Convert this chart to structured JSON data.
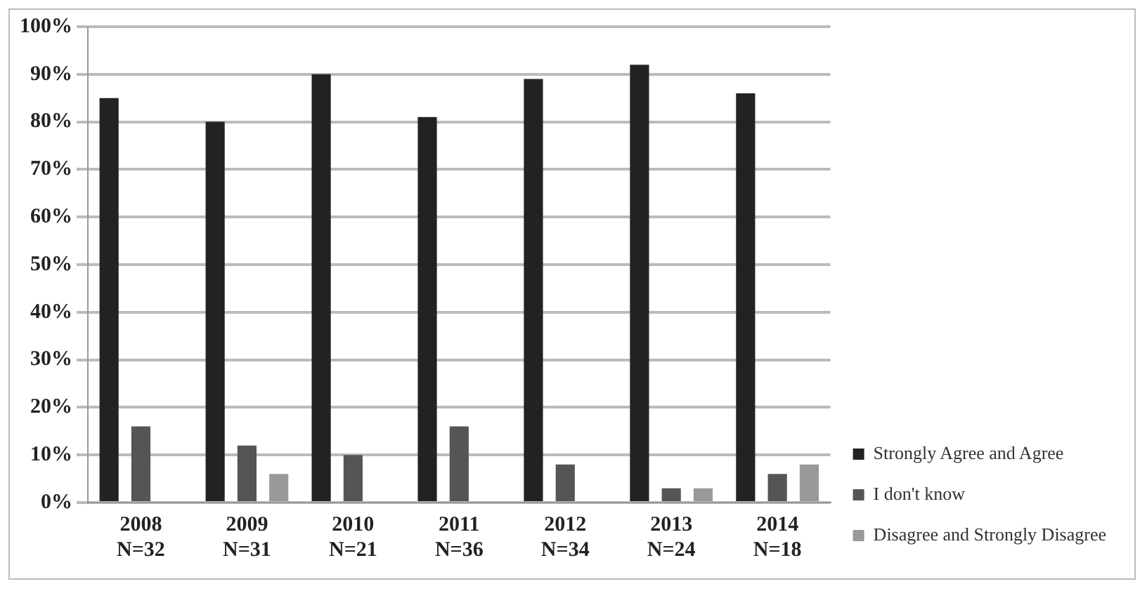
{
  "chart_data": {
    "type": "bar",
    "categories": [
      "2008\nN=32",
      "2009\nN=31",
      "2010\nN=21",
      "2011\nN=36",
      "2012\nN=34",
      "2013\nN=24",
      "2014\nN=18"
    ],
    "series": [
      {
        "name": "Strongly Agree and Agree",
        "color": "#222222",
        "values": [
          85,
          80,
          90,
          81,
          89,
          92,
          86
        ]
      },
      {
        "name": "I don't know",
        "color": "#555555",
        "values": [
          16,
          12,
          10,
          16,
          8,
          3,
          6
        ]
      },
      {
        "name": "Disagree and Strongly Disagree",
        "color": "#999999",
        "values": [
          0,
          6,
          0,
          0,
          0,
          3,
          8
        ]
      }
    ],
    "ylim": [
      0,
      100
    ],
    "yticks": [
      {
        "value": 0,
        "label": "0%"
      },
      {
        "value": 10,
        "label": "10%"
      },
      {
        "value": 20,
        "label": "20%"
      },
      {
        "value": 30,
        "label": "30%"
      },
      {
        "value": 40,
        "label": "40%"
      },
      {
        "value": 50,
        "label": "50%"
      },
      {
        "value": 60,
        "label": "60%"
      },
      {
        "value": 70,
        "label": "70%"
      },
      {
        "value": 80,
        "label": "80%"
      },
      {
        "value": 90,
        "label": "90%"
      },
      {
        "value": 100,
        "label": "100%"
      }
    ],
    "grid": "y",
    "legend": "right"
  }
}
